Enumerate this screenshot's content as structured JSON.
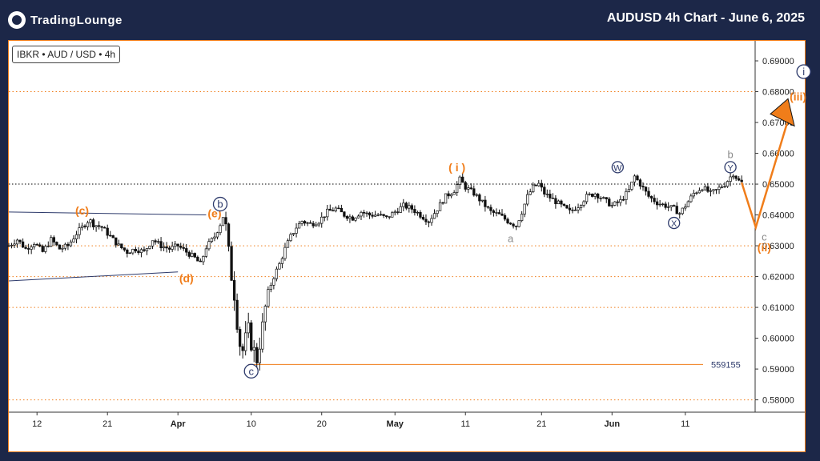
{
  "header": {
    "logo_text": "TradingLounge",
    "title": "AUDUSD 4h Chart - June 6, 2025"
  },
  "symbol_label": "IBKR • AUD / USD • 4h",
  "colors": {
    "background": "#1c2748",
    "accent": "#f07d1a",
    "navy": "#2d3a6b",
    "grey": "#8a8a8a",
    "candle": "#111111"
  },
  "chart_data": {
    "type": "candlestick",
    "ylim": [
      0.576,
      0.6965
    ],
    "y_ticks": [
      "0.69000",
      "0.68000",
      "0.67000",
      "0.66000",
      "0.65000",
      "0.64000",
      "0.63000",
      "0.62000",
      "0.61000",
      "0.60000",
      "0.59000",
      "0.58000"
    ],
    "x_ticks": [
      "12",
      "21",
      "Apr",
      "10",
      "20",
      "May",
      "11",
      "21",
      "Jun",
      "11"
    ],
    "grid": "horizontal dotted lines at 0.68, 0.65, 0.63, 0.62, 0.61, 0.58",
    "price_level_label": "559155",
    "price_level": 0.5915,
    "price_path": [
      [
        0,
        0.63
      ],
      [
        3,
        0.632
      ],
      [
        6,
        0.629
      ],
      [
        9,
        0.631
      ],
      [
        12,
        0.628
      ],
      [
        15,
        0.632
      ],
      [
        18,
        0.629
      ],
      [
        21,
        0.63
      ],
      [
        24,
        0.634
      ],
      [
        27,
        0.637
      ],
      [
        28.5,
        0.6385
      ],
      [
        30,
        0.637
      ],
      [
        33,
        0.636
      ],
      [
        36,
        0.633
      ],
      [
        39,
        0.63
      ],
      [
        42,
        0.628
      ],
      [
        45,
        0.629
      ],
      [
        48,
        0.628
      ],
      [
        51,
        0.632
      ],
      [
        54,
        0.63
      ],
      [
        57,
        0.629
      ],
      [
        60,
        0.63
      ],
      [
        63,
        0.628
      ],
      [
        66,
        0.626
      ],
      [
        68,
        0.624
      ],
      [
        70,
        0.6295
      ],
      [
        73,
        0.633
      ],
      [
        75,
        0.637
      ],
      [
        76,
        0.6395
      ],
      [
        77,
        0.636
      ],
      [
        78,
        0.628
      ],
      [
        79,
        0.62
      ],
      [
        80,
        0.614
      ],
      [
        81,
        0.605
      ],
      [
        82,
        0.598
      ],
      [
        83,
        0.596
      ],
      [
        84,
        0.6
      ],
      [
        85,
        0.603
      ],
      [
        86,
        0.598
      ],
      [
        87,
        0.596
      ],
      [
        88,
        0.593
      ],
      [
        89,
        0.598
      ],
      [
        90,
        0.604
      ],
      [
        91,
        0.61
      ],
      [
        92,
        0.615
      ],
      [
        94,
        0.62
      ],
      [
        96,
        0.624
      ],
      [
        98,
        0.629
      ],
      [
        100,
        0.633
      ],
      [
        102,
        0.636
      ],
      [
        104,
        0.638
      ],
      [
        107,
        0.637
      ],
      [
        110,
        0.638
      ],
      [
        113,
        0.641
      ],
      [
        116,
        0.642
      ],
      [
        119,
        0.64
      ],
      [
        122,
        0.639
      ],
      [
        125,
        0.641
      ],
      [
        128,
        0.64
      ],
      [
        131,
        0.64
      ],
      [
        134,
        0.639
      ],
      [
        137,
        0.641
      ],
      [
        140,
        0.643
      ],
      [
        143,
        0.642
      ],
      [
        146,
        0.64
      ],
      [
        149,
        0.638
      ],
      [
        152,
        0.642
      ],
      [
        155,
        0.646
      ],
      [
        158,
        0.648
      ],
      [
        160,
        0.6515
      ],
      [
        162,
        0.649
      ],
      [
        165,
        0.647
      ],
      [
        168,
        0.644
      ],
      [
        171,
        0.641
      ],
      [
        174,
        0.64
      ],
      [
        177,
        0.638
      ],
      [
        180,
        0.6365
      ],
      [
        182,
        0.641
      ],
      [
        184,
        0.646
      ],
      [
        186,
        0.649
      ],
      [
        188,
        0.65
      ],
      [
        190,
        0.647
      ],
      [
        193,
        0.645
      ],
      [
        196,
        0.643
      ],
      [
        199,
        0.641
      ],
      [
        202,
        0.643
      ],
      [
        205,
        0.646
      ],
      [
        208,
        0.647
      ],
      [
        211,
        0.645
      ],
      [
        214,
        0.643
      ],
      [
        217,
        0.6445
      ],
      [
        220,
        0.648
      ],
      [
        222,
        0.6525
      ],
      [
        224,
        0.65
      ],
      [
        227,
        0.646
      ],
      [
        230,
        0.644
      ],
      [
        233,
        0.643
      ],
      [
        236,
        0.642
      ],
      [
        238,
        0.6405
      ],
      [
        240,
        0.643
      ],
      [
        243,
        0.647
      ],
      [
        246,
        0.649
      ],
      [
        249,
        0.647
      ],
      [
        251,
        0.648
      ],
      [
        254,
        0.65
      ],
      [
        257,
        0.6535
      ],
      [
        259,
        0.651
      ],
      [
        260,
        0.6505
      ]
    ],
    "projection": [
      [
        260,
        0.6505
      ],
      [
        265,
        0.636
      ],
      [
        277,
        0.6725
      ]
    ],
    "trendlines": [
      {
        "from": [
          -2,
          0.641
        ],
        "to": [
          70,
          0.64
        ]
      },
      {
        "from": [
          -2,
          0.6185
        ],
        "to": [
          60,
          0.6215
        ]
      }
    ],
    "wave_labels": [
      {
        "text": "(c)",
        "x": 26,
        "y": 0.6415,
        "style": "orange"
      },
      {
        "text": "(d)",
        "x": 63,
        "y": 0.6195,
        "style": "orange"
      },
      {
        "text": "(e)",
        "x": 73,
        "y": 0.6405,
        "style": "orange"
      },
      {
        "text": "b",
        "x": 75,
        "y": 0.6435,
        "style": "navy-circle"
      },
      {
        "text": "c",
        "x": 86,
        "y": 0.5893,
        "style": "navy-circle"
      },
      {
        "text": "( i )",
        "x": 159,
        "y": 0.6555,
        "style": "orange"
      },
      {
        "text": "a",
        "x": 178,
        "y": 0.6325,
        "style": "grey"
      },
      {
        "text": "W",
        "x": 216,
        "y": 0.6555,
        "style": "navy-circle-small"
      },
      {
        "text": "X",
        "x": 236,
        "y": 0.6374,
        "style": "navy-circle-small"
      },
      {
        "text": "b",
        "x": 256,
        "y": 0.6598,
        "style": "grey"
      },
      {
        "text": "Y",
        "x": 256,
        "y": 0.6555,
        "style": "navy-circle-small"
      },
      {
        "text": "c",
        "x": 268,
        "y": 0.633,
        "style": "grey"
      },
      {
        "text": "(ii)",
        "x": 268,
        "y": 0.6295,
        "style": "orange"
      },
      {
        "text": "(iii)",
        "x": 280,
        "y": 0.6785,
        "style": "orange"
      },
      {
        "text": "i",
        "x": 282,
        "y": 0.6865,
        "style": "navy-circle"
      }
    ]
  }
}
